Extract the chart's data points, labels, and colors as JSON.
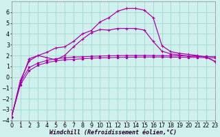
{
  "background_color": "#d0f0ee",
  "grid_color": "#a0d8d0",
  "line_color": "#aa00aa",
  "xlabel": "Windchill (Refroidissement éolien,°C)",
  "xlabel_fontsize": 6.0,
  "tick_fontsize": 5.8,
  "xlim": [
    0,
    23
  ],
  "ylim": [
    -4,
    7
  ],
  "yticks": [
    -4,
    -3,
    -2,
    -1,
    0,
    1,
    2,
    3,
    4,
    5,
    6
  ],
  "xticks": [
    0,
    1,
    2,
    3,
    4,
    5,
    6,
    7,
    8,
    9,
    10,
    11,
    12,
    13,
    14,
    15,
    16,
    17,
    18,
    19,
    20,
    21,
    22,
    23
  ],
  "x": [
    0,
    1,
    2,
    3,
    4,
    5,
    6,
    7,
    8,
    9,
    10,
    11,
    12,
    13,
    14,
    15,
    16,
    17,
    18,
    19,
    20,
    21,
    22,
    23
  ],
  "series1": [
    -3.7,
    -0.7,
    0.6,
    1.1,
    1.35,
    1.5,
    1.6,
    1.65,
    1.7,
    1.75,
    1.78,
    1.8,
    1.82,
    1.84,
    1.85,
    1.86,
    1.86,
    1.86,
    1.85,
    1.84,
    1.83,
    1.82,
    1.8,
    1.78
  ],
  "series2": [
    -3.7,
    -0.5,
    0.9,
    1.3,
    1.55,
    1.7,
    1.78,
    1.85,
    1.88,
    1.92,
    1.95,
    1.97,
    1.99,
    2.0,
    2.01,
    2.01,
    2.0,
    1.99,
    1.98,
    1.97,
    1.95,
    1.93,
    1.91,
    1.89
  ],
  "series3": [
    -3.7,
    -0.5,
    1.7,
    2.0,
    1.8,
    1.6,
    2.0,
    2.8,
    3.5,
    4.1,
    4.4,
    4.35,
    4.5,
    4.5,
    4.5,
    4.35,
    3.3,
    2.4,
    2.15,
    2.05,
    1.95,
    1.95,
    1.85,
    1.45
  ],
  "series4": [
    -3.7,
    -0.3,
    1.5,
    2.0,
    2.3,
    2.7,
    2.8,
    3.3,
    4.0,
    4.3,
    5.1,
    5.5,
    6.1,
    6.35,
    6.35,
    6.2,
    5.5,
    2.9,
    2.35,
    2.2,
    2.1,
    2.0,
    1.85,
    1.45
  ]
}
